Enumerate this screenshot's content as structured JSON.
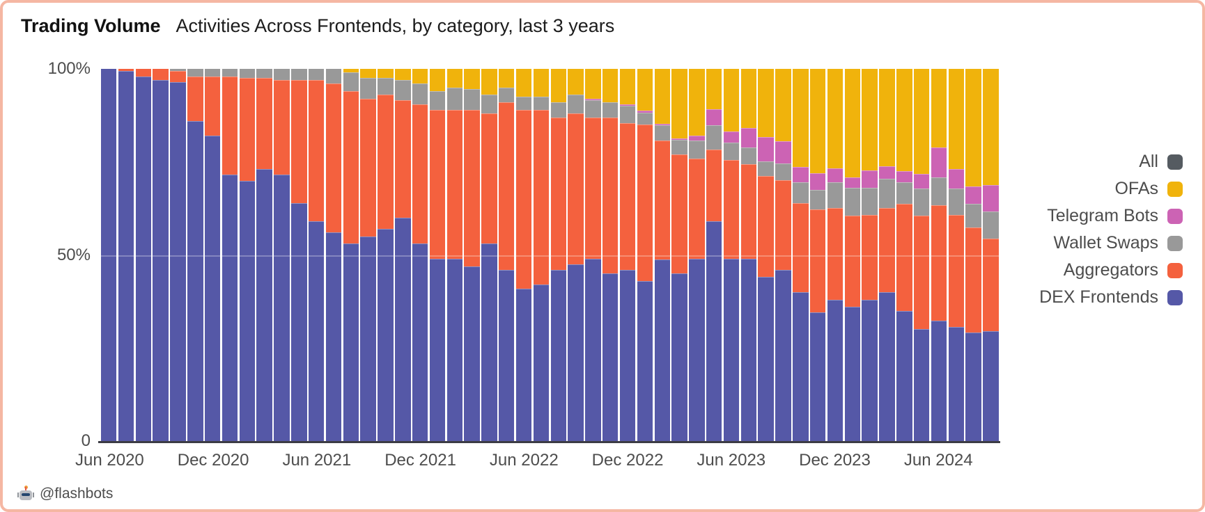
{
  "header": {
    "title": "Trading Volume",
    "subtitle": "Activities Across Frontends, by category, last 3 years"
  },
  "footer": {
    "attribution": "@flashbots",
    "icon": "flashbots-robot-icon"
  },
  "colors": {
    "frame_border": "#f5b7a3",
    "axis_line": "#3c3c44",
    "tick_text": "#4d4d4d",
    "title_text": "#121212",
    "all": "#555b61",
    "ofas": "#f0b30c",
    "telegram_bots": "#cc63b4",
    "wallet_swaps": "#999999",
    "aggregators": "#f4613e",
    "dex_frontends": "#5558a7"
  },
  "chart_data": {
    "type": "bar",
    "stacking": "percent",
    "title": "Trading Volume",
    "subtitle": "Activities Across Frontends, by category, last 3 years",
    "ylim": [
      0,
      100
    ],
    "grid": "single 50% line over bars",
    "legend_position": "right",
    "y_ticks": [
      "100%",
      "50%",
      "0"
    ],
    "x_tick_indices": [
      0,
      6,
      12,
      18,
      24,
      30,
      36,
      42,
      48
    ],
    "x_tick_labels": [
      "Jun 2020",
      "Dec 2020",
      "Jun 2021",
      "Dec 2021",
      "Jun 2022",
      "Dec 2022",
      "Jun 2023",
      "Dec 2023",
      "Jun 2024"
    ],
    "categories": [
      "Jun 2020",
      "Jul 2020",
      "Aug 2020",
      "Sep 2020",
      "Oct 2020",
      "Nov 2020",
      "Dec 2020",
      "Jan 2021",
      "Feb 2021",
      "Mar 2021",
      "Apr 2021",
      "May 2021",
      "Jun 2021",
      "Jul 2021",
      "Aug 2021",
      "Sep 2021",
      "Oct 2021",
      "Nov 2021",
      "Dec 2021",
      "Jan 2022",
      "Feb 2022",
      "Mar 2022",
      "Apr 2022",
      "May 2022",
      "Jun 2022",
      "Jul 2022",
      "Aug 2022",
      "Sep 2022",
      "Oct 2022",
      "Nov 2022",
      "Dec 2022",
      "Jan 2023",
      "Feb 2023",
      "Mar 2023",
      "Apr 2023",
      "May 2023",
      "Jun 2023",
      "Jul 2023",
      "Aug 2023",
      "Sep 2023",
      "Oct 2023",
      "Nov 2023",
      "Dec 2023",
      "Jan 2024",
      "Feb 2024",
      "Mar 2024",
      "Apr 2024",
      "May 2024",
      "Jun 2024",
      "Jul 2024",
      "Aug 2024",
      "Sep 2024"
    ],
    "legend": [
      {
        "label": "All",
        "color": "#555b61"
      },
      {
        "label": "OFAs",
        "color": "#f0b30c"
      },
      {
        "label": "Telegram Bots",
        "color": "#cc63b4"
      },
      {
        "label": "Wallet Swaps",
        "color": "#999999"
      },
      {
        "label": "Aggregators",
        "color": "#f4613e"
      },
      {
        "label": "DEX Frontends",
        "color": "#5558a7"
      }
    ],
    "series": [
      {
        "name": "DEX Frontends",
        "color": "#5558a7",
        "values": [
          100,
          99.5,
          98,
          97,
          96.5,
          86,
          82,
          71.5,
          70,
          73,
          71.5,
          64,
          59,
          56,
          53,
          55,
          57,
          60,
          53,
          49,
          49,
          47,
          53,
          46,
          41,
          42,
          46,
          47.5,
          49,
          45,
          46,
          43,
          48.7,
          45,
          49,
          59,
          49,
          49,
          44,
          46,
          40,
          34.5,
          38,
          36,
          38,
          40,
          35,
          30,
          32.4,
          30.6,
          29.2,
          29.6
        ]
      },
      {
        "name": "Aggregators",
        "color": "#f4613e",
        "values": [
          0,
          0.5,
          2,
          3,
          3,
          12,
          16,
          26.5,
          27.5,
          24.5,
          25.5,
          33,
          38,
          40,
          41,
          37,
          36,
          31.5,
          37.5,
          40,
          40,
          42,
          35,
          45,
          48,
          47,
          41,
          40.5,
          38,
          42,
          39.5,
          42,
          32,
          32,
          27,
          19.4,
          26.5,
          25.4,
          27,
          24,
          24,
          27.8,
          24.7,
          24.5,
          22.8,
          22.7,
          28.7,
          30.6,
          31,
          30.1,
          28.2,
          24.8
        ]
      },
      {
        "name": "Wallet Swaps",
        "color": "#999999",
        "values": [
          0,
          0,
          0,
          0,
          0.5,
          2,
          2,
          2,
          2.5,
          2.5,
          3,
          3,
          3,
          4,
          5,
          5.5,
          4.5,
          5.5,
          5.5,
          5,
          6,
          5.5,
          5,
          4,
          3.5,
          3.5,
          4,
          5,
          4.5,
          4,
          4.5,
          3.3,
          4.2,
          4,
          4.8,
          6.5,
          4.7,
          4.5,
          4,
          4.5,
          5.6,
          5.2,
          6.9,
          7.5,
          7.2,
          7.7,
          5.9,
          7.2,
          7.4,
          7.2,
          6.3,
          7.3
        ]
      },
      {
        "name": "Telegram Bots",
        "color": "#cc63b4",
        "values": [
          0,
          0,
          0,
          0,
          0,
          0,
          0,
          0,
          0,
          0,
          0,
          0,
          0,
          0,
          0,
          0,
          0,
          0,
          0,
          0,
          0,
          0,
          0,
          0,
          0,
          0,
          0,
          0,
          0.5,
          0,
          0.5,
          0.4,
          0.3,
          0.4,
          1.4,
          4.2,
          3,
          5.3,
          6.5,
          6,
          4,
          4.4,
          3.6,
          2.8,
          4.7,
          3.4,
          2.9,
          4,
          8,
          5.1,
          4.8,
          7.1
        ]
      },
      {
        "name": "OFAs",
        "color": "#f0b30c",
        "values": [
          0,
          0,
          0,
          0,
          0,
          0,
          0,
          0,
          0,
          0,
          0,
          0,
          0,
          0,
          1,
          2.5,
          2.5,
          3,
          4,
          6,
          5,
          5.5,
          7,
          5,
          7.5,
          7.5,
          9,
          7,
          8,
          9,
          9.5,
          11.3,
          14.8,
          18.6,
          17.9,
          10.9,
          16.8,
          15.8,
          18.3,
          19.4,
          26.4,
          28.1,
          26.8,
          29.2,
          27.3,
          26.2,
          27.5,
          28.2,
          21.2,
          27,
          31.5,
          31.2
        ]
      }
    ]
  }
}
